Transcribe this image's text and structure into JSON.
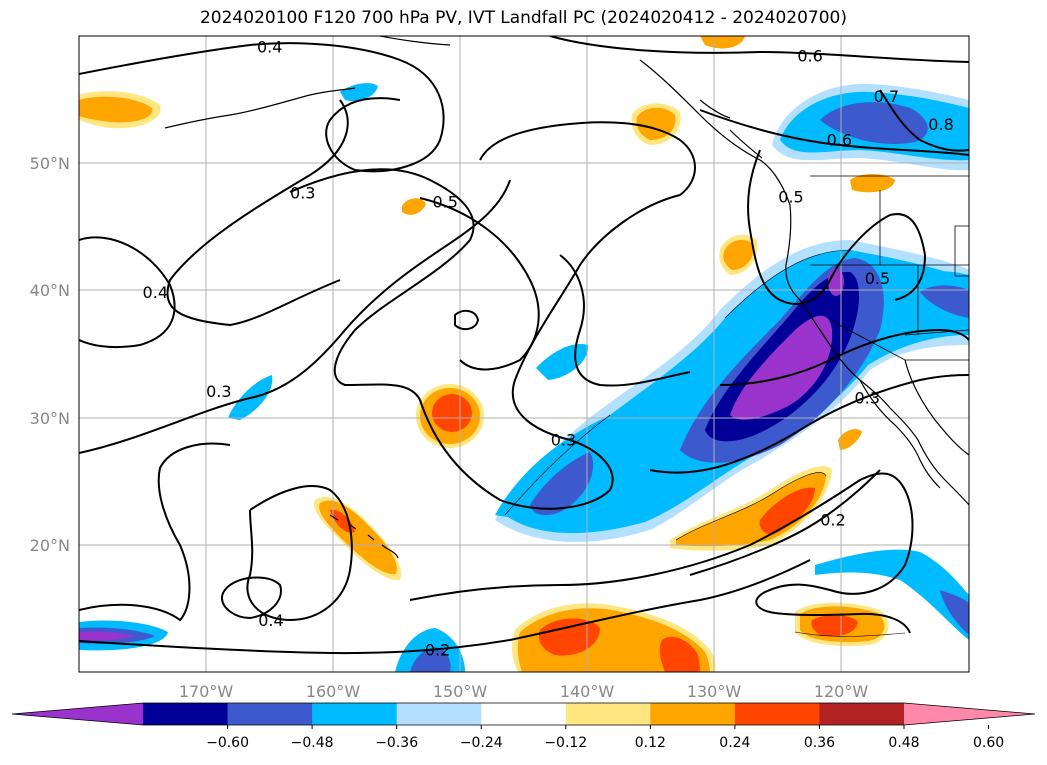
{
  "title": "2024020100 F120 700 hPa PV, IVT Landfall PC (2024020412 - 2024020700)",
  "map": {
    "projection": "PlateCarree",
    "lon_range": [
      -180,
      -110
    ],
    "lat_range": [
      10,
      60
    ],
    "lat_ticks": [
      "50°N",
      "40°N",
      "30°N",
      "20°N"
    ],
    "lon_ticks": [
      "170°W",
      "160°W",
      "150°W",
      "140°W",
      "130°W",
      "120°W"
    ],
    "gridlines": true,
    "colors": {
      "gridline": "#b0b0b0",
      "tick_label": "#888888",
      "contour": "#000000",
      "coast": "#000000"
    }
  },
  "contour_labels": [
    {
      "text": "0.4",
      "lon": -165,
      "lat": 59.1
    },
    {
      "text": "0.6",
      "lon": -122.5,
      "lat": 58.4
    },
    {
      "text": "0.7",
      "lon": -116.5,
      "lat": 55.2
    },
    {
      "text": "0.8",
      "lon": -112.2,
      "lat": 53.0
    },
    {
      "text": "0.6",
      "lon": -120.2,
      "lat": 51.8
    },
    {
      "text": "0.3",
      "lon": -162.4,
      "lat": 47.6
    },
    {
      "text": "0.5",
      "lon": -151.2,
      "lat": 46.9
    },
    {
      "text": "0.5",
      "lon": -124.0,
      "lat": 47.3
    },
    {
      "text": "0.4",
      "lon": -174.0,
      "lat": 39.8
    },
    {
      "text": "0.5",
      "lon": -117.2,
      "lat": 40.9
    },
    {
      "text": "0.3",
      "lon": -169.0,
      "lat": 32.0
    },
    {
      "text": "0.3",
      "lon": -141.9,
      "lat": 28.2
    },
    {
      "text": "0.3",
      "lon": -118.0,
      "lat": 31.5
    },
    {
      "text": "0.2",
      "lon": -120.7,
      "lat": 21.9
    },
    {
      "text": "0.4",
      "lon": -164.9,
      "lat": 14.0
    },
    {
      "text": "0.2",
      "lon": -151.8,
      "lat": 11.7
    }
  ],
  "colorbar": {
    "ticks": [
      "−0.60",
      "−0.48",
      "−0.36",
      "−0.24",
      "−0.12",
      "0.12",
      "0.24",
      "0.36",
      "0.48",
      "0.60"
    ],
    "colors": [
      "#9933cc",
      "#000099",
      "#3c5acd",
      "#00bbff",
      "#b3e0ff",
      "#ffffff",
      "#ffe680",
      "#ffa500",
      "#ff4500",
      "#b22222",
      "#ff88aa"
    ]
  }
}
